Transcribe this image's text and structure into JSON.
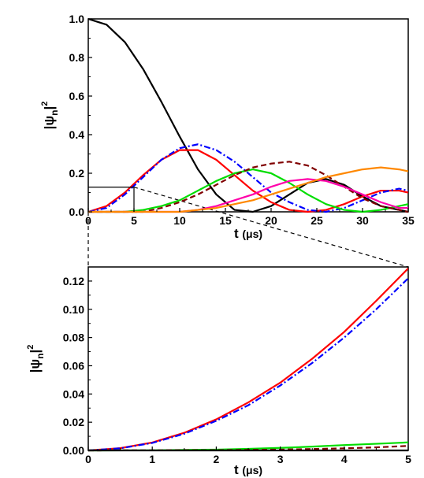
{
  "chart_data": [
    {
      "type": "line",
      "xlabel": "t (μs)",
      "ylabel": "|ψn|2",
      "xlim": [
        0,
        35
      ],
      "ylim": [
        0,
        1.0
      ],
      "xticks": [
        "0",
        "5",
        "10",
        "15",
        "20",
        "25",
        "30",
        "35"
      ],
      "yticks": [
        "0.0",
        "0.2",
        "0.4",
        "0.6",
        "0.8",
        "1.0"
      ],
      "inset_marker": {
        "x": 5,
        "y": 0.128
      },
      "series": [
        {
          "color": "#000000",
          "style": "solid",
          "x": [
            0,
            2,
            4,
            6,
            8,
            10,
            12,
            14,
            16,
            18,
            20,
            22,
            24,
            26,
            28,
            30,
            32,
            34,
            35
          ],
          "y": [
            1.0,
            0.97,
            0.88,
            0.74,
            0.57,
            0.39,
            0.22,
            0.09,
            0.01,
            0.0,
            0.03,
            0.09,
            0.15,
            0.17,
            0.14,
            0.08,
            0.03,
            0.01,
            0.0
          ]
        },
        {
          "color": "#ff0000",
          "style": "solid",
          "x": [
            0,
            2,
            4,
            6,
            8,
            10,
            12,
            14,
            16,
            18,
            20,
            22,
            24,
            26,
            28,
            30,
            32,
            34,
            35
          ],
          "y": [
            0.0,
            0.03,
            0.1,
            0.19,
            0.27,
            0.32,
            0.32,
            0.27,
            0.19,
            0.11,
            0.05,
            0.01,
            0.0,
            0.01,
            0.04,
            0.08,
            0.11,
            0.11,
            0.1
          ]
        },
        {
          "color": "#0000ff",
          "style": "dash-dot",
          "x": [
            0,
            2,
            4,
            6,
            8,
            10,
            12,
            14,
            16,
            18,
            20,
            22,
            24,
            26,
            28,
            30,
            32,
            34,
            35
          ],
          "y": [
            0.0,
            0.02,
            0.09,
            0.18,
            0.27,
            0.33,
            0.35,
            0.32,
            0.26,
            0.18,
            0.1,
            0.05,
            0.01,
            0.0,
            0.02,
            0.06,
            0.1,
            0.12,
            0.11
          ]
        },
        {
          "color": "#00dd00",
          "style": "solid",
          "x": [
            0,
            4,
            6,
            8,
            10,
            12,
            14,
            16,
            18,
            20,
            22,
            24,
            26,
            28,
            30,
            32,
            35
          ],
          "y": [
            0.0,
            0.0,
            0.01,
            0.03,
            0.06,
            0.11,
            0.16,
            0.2,
            0.22,
            0.2,
            0.15,
            0.09,
            0.04,
            0.01,
            0.0,
            0.01,
            0.04
          ]
        },
        {
          "color": "#800000",
          "style": "dash",
          "x": [
            0,
            4,
            6,
            8,
            10,
            12,
            14,
            16,
            18,
            20,
            22,
            24,
            26,
            28,
            30,
            32,
            34,
            35
          ],
          "y": [
            0.0,
            0.0,
            0.0,
            0.02,
            0.05,
            0.09,
            0.14,
            0.19,
            0.23,
            0.25,
            0.26,
            0.24,
            0.19,
            0.13,
            0.07,
            0.03,
            0.01,
            0.0
          ]
        },
        {
          "color": "#ff00aa",
          "style": "solid",
          "x": [
            0,
            8,
            10,
            12,
            14,
            16,
            18,
            20,
            22,
            24,
            26,
            28,
            30,
            32,
            34,
            35
          ],
          "y": [
            0.0,
            0.0,
            0.0,
            0.01,
            0.03,
            0.06,
            0.09,
            0.13,
            0.16,
            0.17,
            0.16,
            0.13,
            0.09,
            0.05,
            0.02,
            0.02
          ]
        },
        {
          "color": "#ff8800",
          "style": "solid",
          "x": [
            0,
            10,
            12,
            14,
            16,
            18,
            20,
            22,
            24,
            26,
            28,
            30,
            32,
            34,
            35
          ],
          "y": [
            0.0,
            0.0,
            0.01,
            0.02,
            0.04,
            0.06,
            0.09,
            0.12,
            0.15,
            0.18,
            0.2,
            0.22,
            0.23,
            0.22,
            0.21
          ]
        }
      ]
    },
    {
      "type": "line",
      "xlabel": "t (μs)",
      "ylabel": "|ψn|2",
      "xlim": [
        0,
        5
      ],
      "ylim": [
        0,
        0.13
      ],
      "xticks": [
        "0",
        "1",
        "2",
        "3",
        "4",
        "5"
      ],
      "yticks": [
        "0.00",
        "0.02",
        "0.04",
        "0.06",
        "0.08",
        "0.10",
        "0.12"
      ],
      "series": [
        {
          "color": "#ff0000",
          "style": "solid",
          "x": [
            0,
            0.5,
            1,
            1.5,
            2,
            2.5,
            3,
            3.5,
            4,
            4.5,
            5
          ],
          "y": [
            0.0,
            0.0016,
            0.0056,
            0.0125,
            0.022,
            0.034,
            0.048,
            0.065,
            0.084,
            0.106,
            0.129
          ]
        },
        {
          "color": "#0000ff",
          "style": "dash-dot",
          "x": [
            0,
            0.5,
            1,
            1.5,
            2,
            2.5,
            3,
            3.5,
            4,
            4.5,
            5
          ],
          "y": [
            0.0,
            0.0015,
            0.0053,
            0.0118,
            0.021,
            0.032,
            0.046,
            0.062,
            0.08,
            0.1,
            0.122
          ]
        },
        {
          "color": "#00dd00",
          "style": "solid",
          "x": [
            0,
            1,
            2,
            2.5,
            3,
            3.5,
            4,
            4.5,
            5
          ],
          "y": [
            0.0,
            0.0001,
            0.0006,
            0.0011,
            0.0018,
            0.0027,
            0.0038,
            0.0047,
            0.0057
          ]
        },
        {
          "color": "#800000",
          "style": "dash",
          "x": [
            0,
            2,
            3,
            3.5,
            4,
            4.5,
            5
          ],
          "y": [
            0.0,
            0.0002,
            0.0006,
            0.001,
            0.0015,
            0.0022,
            0.0032
          ]
        },
        {
          "color": "#000000",
          "style": "solid",
          "x": [
            0,
            5
          ],
          "y": [
            0.0,
            0.0
          ]
        }
      ]
    }
  ]
}
